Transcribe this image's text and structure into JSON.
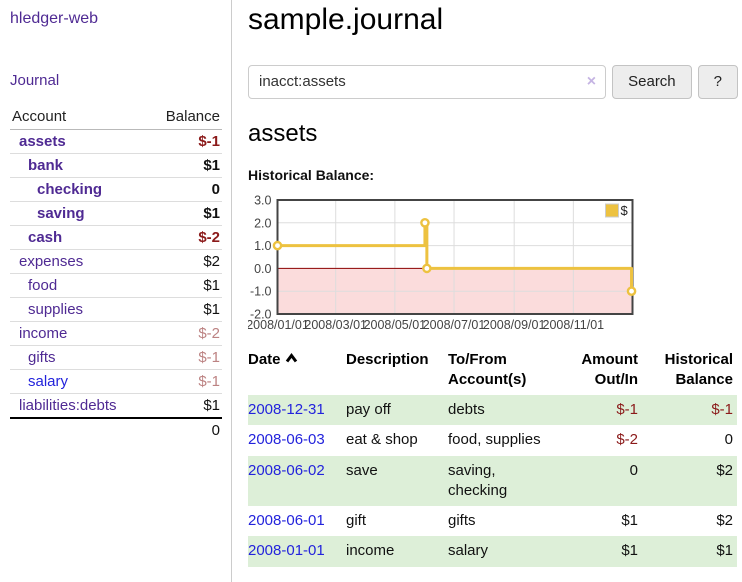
{
  "sidebar": {
    "brand": "hledger-web",
    "journal_link": "Journal",
    "accounts": {
      "col_account": "Account",
      "col_balance": "Balance",
      "rows": [
        {
          "name": "assets",
          "balance": "$-1",
          "level": 1,
          "bold": true,
          "balance_style": "negative"
        },
        {
          "name": "bank",
          "balance": "$1",
          "level": 2,
          "bold": true,
          "balance_style": "normal"
        },
        {
          "name": "checking",
          "balance": "0",
          "level": 3,
          "bold": true,
          "balance_style": "normal"
        },
        {
          "name": "saving",
          "balance": "$1",
          "level": 3,
          "bold": true,
          "balance_style": "normal"
        },
        {
          "name": "cash",
          "balance": "$-2",
          "level": 2,
          "bold": true,
          "balance_style": "negative"
        },
        {
          "name": "expenses",
          "balance": "$2",
          "level": 1,
          "bold": false,
          "balance_style": "normal"
        },
        {
          "name": "food",
          "balance": "$1",
          "level": 2,
          "bold": false,
          "balance_style": "normal"
        },
        {
          "name": "supplies",
          "balance": "$1",
          "level": 2,
          "bold": false,
          "balance_style": "normal"
        },
        {
          "name": "income",
          "balance": "$-2",
          "level": 1,
          "bold": false,
          "balance_style": "negative-muted"
        },
        {
          "name": "gifts",
          "balance": "$-1",
          "level": 2,
          "bold": false,
          "balance_style": "negative-muted"
        },
        {
          "name": "salary",
          "balance": "$-1",
          "level": 2,
          "bold": false,
          "balance_style": "negative-muted",
          "link_style": "blue"
        },
        {
          "name": "liabilities:debts",
          "balance": "$1",
          "level": 1,
          "bold": false,
          "balance_style": "normal"
        }
      ],
      "total": "0"
    }
  },
  "main": {
    "title": "sample.journal",
    "search": {
      "value": "inacct:assets",
      "clear_icon": "×",
      "search_button": "Search",
      "help_button": "?"
    },
    "account_title": "assets",
    "chart_title": "Historical Balance:"
  },
  "chart_data": {
    "type": "line",
    "step": true,
    "title": "Historical Balance",
    "series": [
      {
        "name": "$",
        "color": "#edc240",
        "points": [
          [
            "2008-01-01",
            1
          ],
          [
            "2008-06-01",
            2
          ],
          [
            "2008-06-03",
            0
          ],
          [
            "2008-12-31",
            -1
          ]
        ]
      }
    ],
    "x_ticks": [
      "2008/01/01",
      "2008/03/01",
      "2008/05/01",
      "2008/07/01",
      "2008/09/01",
      "2008/11/01"
    ],
    "y_ticks": [
      3.0,
      2.0,
      1.0,
      0.0,
      -1.0,
      -2.0
    ],
    "ylim": [
      -2,
      3
    ],
    "xlim": [
      "2008-01-01",
      "2009-01-01"
    ],
    "grid": true,
    "legend_position": "top-right",
    "negative_region_color": "#fbdcdc",
    "zero_line_color": "#8b0000",
    "grid_line_color": "#dddddd",
    "border_color": "#444444",
    "tick_label_color": "#444444"
  },
  "register": {
    "headers": [
      {
        "line1": "Date",
        "line2": "",
        "sort": "asc"
      },
      {
        "line1": "Description",
        "line2": ""
      },
      {
        "line1": "To/From",
        "line2": "Account(s)"
      },
      {
        "line1": "Amount",
        "line2": "Out/In",
        "align": "right"
      },
      {
        "line1": "Historical",
        "line2": "Balance",
        "align": "right"
      }
    ],
    "rows": [
      {
        "date": "2008-12-31",
        "description": "pay off",
        "accounts": "debts",
        "amount": "$-1",
        "amount_style": "negative",
        "balance": "$-1",
        "balance_style": "negative"
      },
      {
        "date": "2008-06-03",
        "description": "eat & shop",
        "accounts": "food, supplies",
        "amount": "$-2",
        "amount_style": "negative",
        "balance": "0",
        "balance_style": "normal"
      },
      {
        "date": "2008-06-02",
        "description": "save",
        "accounts": "saving, checking",
        "amount": "0",
        "amount_style": "normal",
        "balance": "$2",
        "balance_style": "normal"
      },
      {
        "date": "2008-06-01",
        "description": "gift",
        "accounts": "gifts",
        "amount": "$1",
        "amount_style": "normal",
        "balance": "$2",
        "balance_style": "normal"
      },
      {
        "date": "2008-01-01",
        "description": "income",
        "accounts": "salary",
        "amount": "$1",
        "amount_style": "normal",
        "balance": "$1",
        "balance_style": "normal"
      }
    ]
  },
  "colors": {
    "link_purple": "#4f2a93",
    "link_blue": "#2323dc",
    "negative": "#8b1a1a",
    "negative_muted": "#bc8282",
    "row_stripe_green": "#ddefd8",
    "chart_line": "#edc240",
    "chart_negative_area": "#fbdcdc",
    "chart_zero_line": "#8b0000"
  }
}
